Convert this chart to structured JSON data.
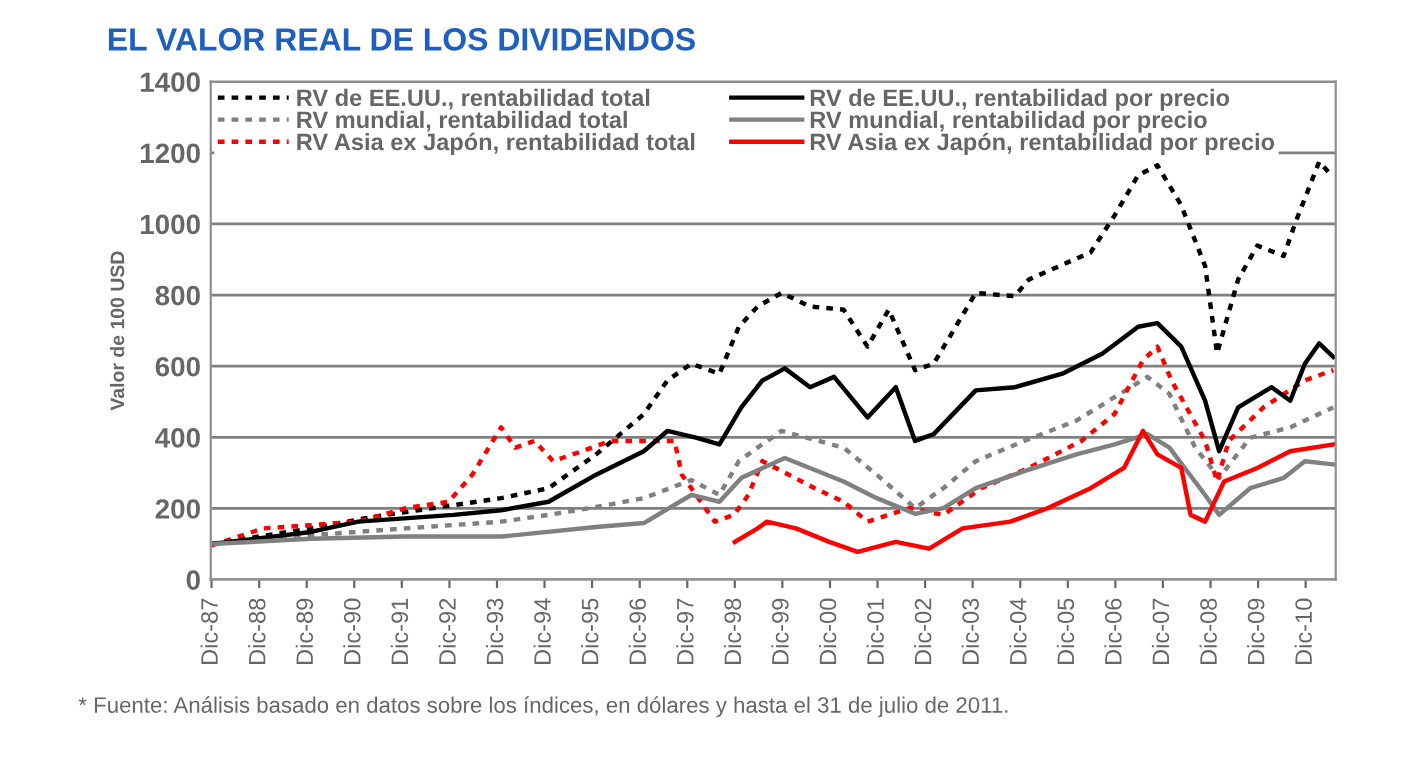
{
  "chart_data": {
    "type": "line",
    "title": "EL VALOR REAL DE LOS DIVIDENDOS",
    "ylabel": "Valor de 100 USD",
    "xlim": [
      "1987-11-25",
      "2011-07-20"
    ],
    "ylim": [
      0,
      1400
    ],
    "yticks": [
      0,
      200,
      400,
      600,
      800,
      1000,
      1200,
      1400
    ],
    "xticks": [
      {
        "value": "1987-12-01",
        "label": "Dic-87"
      },
      {
        "value": "1988-12-01",
        "label": "Dic-88"
      },
      {
        "value": "1989-12-01",
        "label": "Dic-89"
      },
      {
        "value": "1990-12-01",
        "label": "Dic-90"
      },
      {
        "value": "1991-12-01",
        "label": "Dic-91"
      },
      {
        "value": "1992-12-01",
        "label": "Dic-92"
      },
      {
        "value": "1993-12-01",
        "label": "Dic-93"
      },
      {
        "value": "1994-12-01",
        "label": "Dic-94"
      },
      {
        "value": "1995-12-01",
        "label": "Dic-95"
      },
      {
        "value": "1996-12-01",
        "label": "Dic-96"
      },
      {
        "value": "1997-12-01",
        "label": "Dic-97"
      },
      {
        "value": "1998-12-01",
        "label": "Dic-98"
      },
      {
        "value": "1999-12-01",
        "label": "Dic-99"
      },
      {
        "value": "2000-12-01",
        "label": "Dic-00"
      },
      {
        "value": "2001-12-01",
        "label": "Dic-01"
      },
      {
        "value": "2002-12-01",
        "label": "Dic-02"
      },
      {
        "value": "2003-12-01",
        "label": "Dic-03"
      },
      {
        "value": "2004-12-01",
        "label": "Dic-04"
      },
      {
        "value": "2005-12-01",
        "label": "Dic-05"
      },
      {
        "value": "2006-12-01",
        "label": "Dic-06"
      },
      {
        "value": "2007-12-01",
        "label": "Dic-07"
      },
      {
        "value": "2008-12-01",
        "label": "Dic-08"
      },
      {
        "value": "2009-12-01",
        "label": "Dic-09"
      },
      {
        "value": "2010-12-01",
        "label": "Dic-10"
      }
    ],
    "grid": "y",
    "legend": "top left",
    "marker": "none",
    "annotations": [
      "* Fuente: Análisis basado en datos sobre los índices, en dólares y hasta el 31 de julio de 2011."
    ],
    "series": [
      {
        "name": "RV de EE.UU., rentabilidad total",
        "color": "#000000",
        "line_style": "dotted",
        "x": [
          "1987-12-01",
          "1990-01-01",
          "1991-04-15",
          "1994-01-01",
          "1995-01-01",
          "1996-01-01",
          "1997-01-01",
          "1997-07-01",
          "1998-01-01",
          "1998-08-05",
          "1999-01-01",
          "1999-05-25",
          "1999-11-25",
          "2000-07-01",
          "2001-03-15",
          "2001-09-15",
          "2002-02-25",
          "2002-09-15",
          "2003-02-05",
          "2003-12-25",
          "2004-10-20",
          "2005-02-05",
          "2006-05-25",
          "2006-11-25",
          "2007-05-25",
          "2007-10-20",
          "2008-04-20",
          "2008-10-20",
          "2009-01-20",
          "2009-07-01",
          "2009-11-25",
          "2010-06-15",
          "2010-09-15",
          "2011-03-15",
          "2011-05-25"
        ],
        "values": [
          100,
          144,
          176,
          229,
          257,
          352,
          465,
          560,
          607,
          579,
          711,
          768,
          806,
          768,
          759,
          655,
          759,
          589,
          607,
          806,
          797,
          844,
          920,
          1024,
          1137,
          1165,
          1052,
          882,
          636,
          844,
          939,
          910,
          1005,
          1175,
          1146
        ]
      },
      {
        "name": "RV mundial, rentabilidad total",
        "color": "#808080",
        "line_style": "dotted",
        "x": [
          "1987-12-01",
          "1990-01-01",
          "1992-01-01",
          "1994-01-01",
          "1995-01-01",
          "1996-01-01",
          "1997-01-01",
          "1998-01-01",
          "1998-08-05",
          "1999-01-01",
          "1999-05-25",
          "1999-11-25",
          "2001-03-15",
          "2001-11-25",
          "2002-09-15",
          "2003-04-20",
          "2003-12-25",
          "2005-01-01",
          "2006-02-05",
          "2006-11-25",
          "2007-08-05",
          "2008-01-20",
          "2008-08-05",
          "2009-02-05",
          "2009-10-01",
          "2010-08-05",
          "2011-03-15",
          "2011-07-01"
        ],
        "values": [
          100,
          125,
          144,
          163,
          182,
          204,
          229,
          280,
          238,
          333,
          371,
          418,
          371,
          295,
          201,
          257,
          333,
          390,
          447,
          513,
          570,
          522,
          371,
          286,
          399,
          428,
          466,
          484
        ]
      },
      {
        "name": "RV Asia ex Japón, rentabilidad total",
        "color": "#ff0000",
        "line_style": "dotted",
        "x": [
          "1987-12-01",
          "1989-01-01",
          "1990-01-01",
          "1991-01-01",
          "1992-01-01",
          "1992-11-25",
          "1993-05-25",
          "1994-01-01",
          "1994-04-20",
          "1994-09-15",
          "1995-02-05",
          "1995-09-15",
          "1996-04-20",
          "1996-10-20",
          "1997-08-25",
          "1997-10-20",
          "1998-07-01",
          "1998-11-25",
          "1999-03-15",
          "1999-07-01",
          "2000-01-20",
          "2000-08-05",
          "2001-03-15",
          "2001-09-15",
          "2002-08-05",
          "2003-04-20",
          "2004-02-05",
          "2005-02-05",
          "2006-03-15",
          "2006-11-25",
          "2007-07-01",
          "2007-10-20",
          "2008-02-05",
          "2008-10-20",
          "2009-01-20",
          "2009-04-20",
          "2010-01-10",
          "2010-11-25",
          "2011-07-01"
        ],
        "values": [
          96,
          144,
          153,
          163,
          201,
          219,
          295,
          428,
          371,
          390,
          333,
          361,
          390,
          390,
          390,
          295,
          163,
          182,
          238,
          333,
          295,
          257,
          219,
          163,
          201,
          182,
          257,
          314,
          390,
          466,
          617,
          655,
          560,
          390,
          276,
          390,
          484,
          560,
          589
        ]
      },
      {
        "name": "RV de EE.UU., rentabilidad por precio",
        "color": "#000000",
        "line_style": "solid",
        "x": [
          "1987-12-01",
          "1990-01-01",
          "1991-01-01",
          "1993-01-01",
          "1994-01-01",
          "1995-01-01",
          "1996-01-01",
          "1997-01-01",
          "1997-07-01",
          "1998-02-05",
          "1998-08-05",
          "1999-01-20",
          "1999-07-01",
          "1999-12-20",
          "2000-07-01",
          "2001-01-01",
          "2001-09-15",
          "2002-04-20",
          "2002-09-15",
          "2003-02-05",
          "2003-12-25",
          "2004-10-20",
          "2005-10-20",
          "2006-08-25",
          "2007-05-25",
          "2007-10-20",
          "2008-04-20",
          "2008-10-20",
          "2009-02-05",
          "2009-07-01",
          "2010-03-15",
          "2010-08-05",
          "2010-11-25",
          "2011-03-15",
          "2011-07-01"
        ],
        "values": [
          100,
          134,
          163,
          182,
          195,
          219,
          295,
          361,
          418,
          399,
          380,
          484,
          560,
          594,
          541,
          570,
          456,
          541,
          390,
          409,
          532,
          541,
          579,
          636,
          711,
          721,
          655,
          503,
          361,
          484,
          541,
          503,
          607,
          664,
          626
        ]
      },
      {
        "name": "RV mundial, rentabilidad por precio",
        "color": "#808080",
        "line_style": "solid",
        "x": [
          "1987-12-01",
          "1990-01-01",
          "1992-01-01",
          "1994-01-01",
          "1996-01-01",
          "1997-01-01",
          "1998-01-01",
          "1998-08-05",
          "1999-01-20",
          "1999-12-20",
          "2001-03-15",
          "2001-11-25",
          "2002-09-15",
          "2003-04-20",
          "2003-12-25",
          "2005-01-01",
          "2006-02-05",
          "2006-11-25",
          "2007-08-05",
          "2008-01-20",
          "2008-10-20",
          "2009-02-05",
          "2009-10-01",
          "2010-06-15",
          "2010-11-25",
          "2011-07-01"
        ],
        "values": [
          100,
          115,
          121,
          121,
          148,
          159,
          238,
          219,
          286,
          342,
          276,
          229,
          185,
          201,
          257,
          305,
          352,
          380,
          409,
          371,
          238,
          182,
          257,
          286,
          333,
          324
        ]
      },
      {
        "name": "RV Asia ex Japón, rentabilidad por precio",
        "color": "#ff0000",
        "line_style": "solid",
        "x": [
          "1998-12-01",
          "1999-05-25",
          "1999-08-05",
          "2000-03-15",
          "2000-11-25",
          "2001-07-01",
          "2002-04-20",
          "2003-01-01",
          "2003-09-15",
          "2004-09-15",
          "2005-07-01",
          "2006-05-25",
          "2007-02-05",
          "2007-07-01",
          "2007-10-20",
          "2008-04-20",
          "2008-07-01",
          "2008-10-20",
          "2009-03-15",
          "2009-11-25",
          "2010-08-05",
          "2011-07-01"
        ],
        "values": [
          106,
          144,
          163,
          144,
          106,
          78,
          106,
          87,
          144,
          163,
          201,
          257,
          314,
          418,
          352,
          314,
          182,
          163,
          276,
          314,
          361,
          380
        ]
      }
    ]
  }
}
